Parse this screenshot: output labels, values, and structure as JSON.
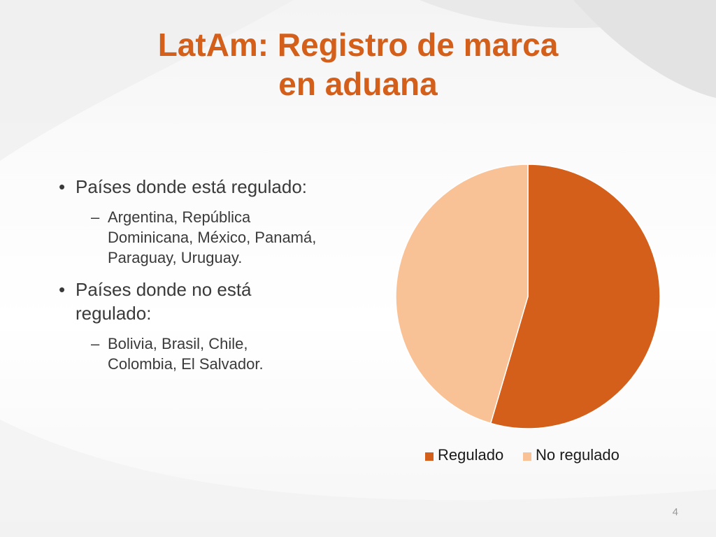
{
  "slide": {
    "title_line1": "LatAm: Registro de marca",
    "title_line2": "en aduana",
    "page_number": "4"
  },
  "content": {
    "bullets": [
      {
        "text": "Países donde está regulado:",
        "sub": [
          "Argentina, República",
          "Dominicana, México, Panamá,",
          "Paraguay, Uruguay."
        ]
      },
      {
        "text": [
          "Países donde no está",
          "regulado:"
        ],
        "sub": [
          "Bolivia, Brasil, Chile,",
          "Colombia, El Salvador."
        ]
      }
    ]
  },
  "colors": {
    "title": "#d35f1a",
    "regulado": "#d35f1a",
    "no_regulado": "#f8c296",
    "text": "#3a3a3a"
  },
  "chart_data": {
    "type": "pie",
    "categories": [
      "Regulado",
      "No regulado"
    ],
    "values": [
      6,
      5
    ],
    "title": "",
    "legend_position": "bottom"
  }
}
